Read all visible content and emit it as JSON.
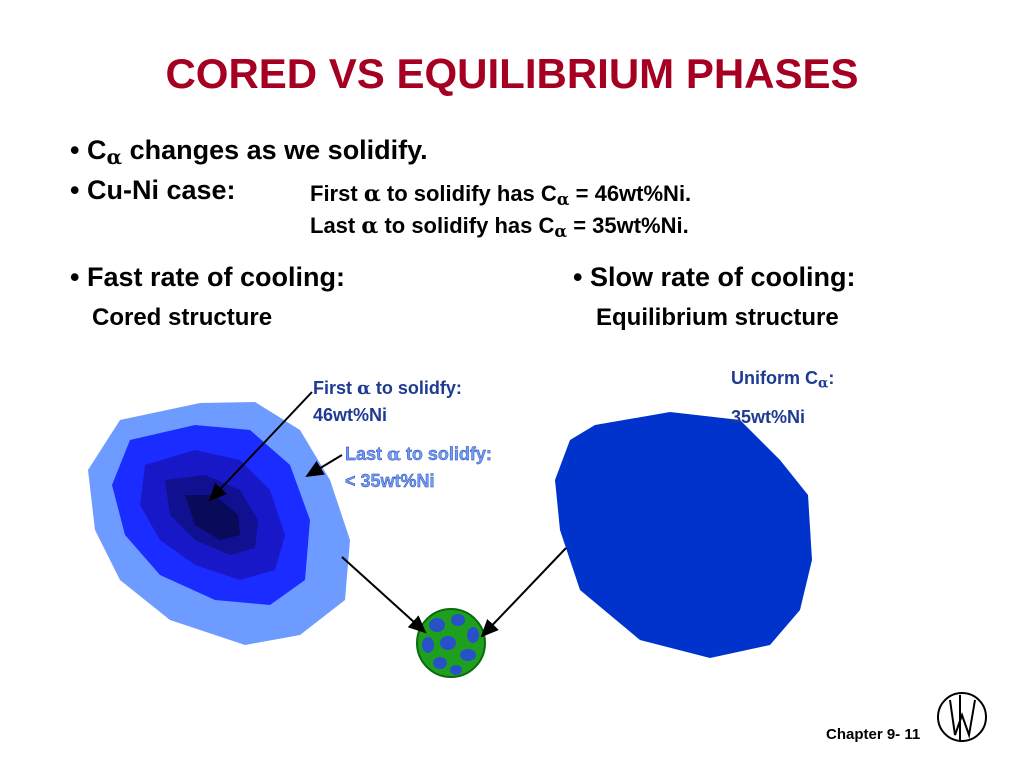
{
  "title": "CORED VS EQUILIBRIUM PHASES",
  "bullets": [
    {
      "parts": [
        "C",
        "α",
        "changes as we solidify."
      ]
    },
    {
      "label": "Cu-Ni case:",
      "lines": [
        [
          "First",
          "α",
          "to solidify has C",
          "α",
          "= 46wt%Ni."
        ],
        [
          "Last",
          "α",
          "to solidify has C",
          "α",
          "= 35wt%Ni."
        ]
      ]
    }
  ],
  "columns": [
    {
      "heading": "Fast rate of cooling:",
      "subheading": "Cored structure"
    },
    {
      "heading": "Slow rate of cooling:",
      "subheading": "Equilibrium structure"
    }
  ],
  "annotations": [
    {
      "line1": [
        "First",
        "α",
        "to solidfy:"
      ],
      "line2": "46wt%Ni"
    },
    {
      "line1": [
        "Last",
        "α",
        "to solidfy:"
      ],
      "line2": "< 35wt%Ni"
    },
    {
      "line1": [
        "Uniform C",
        "α",
        ":"
      ],
      "line2": "35wt%Ni"
    }
  ],
  "footer": "Chapter 9- 11"
}
